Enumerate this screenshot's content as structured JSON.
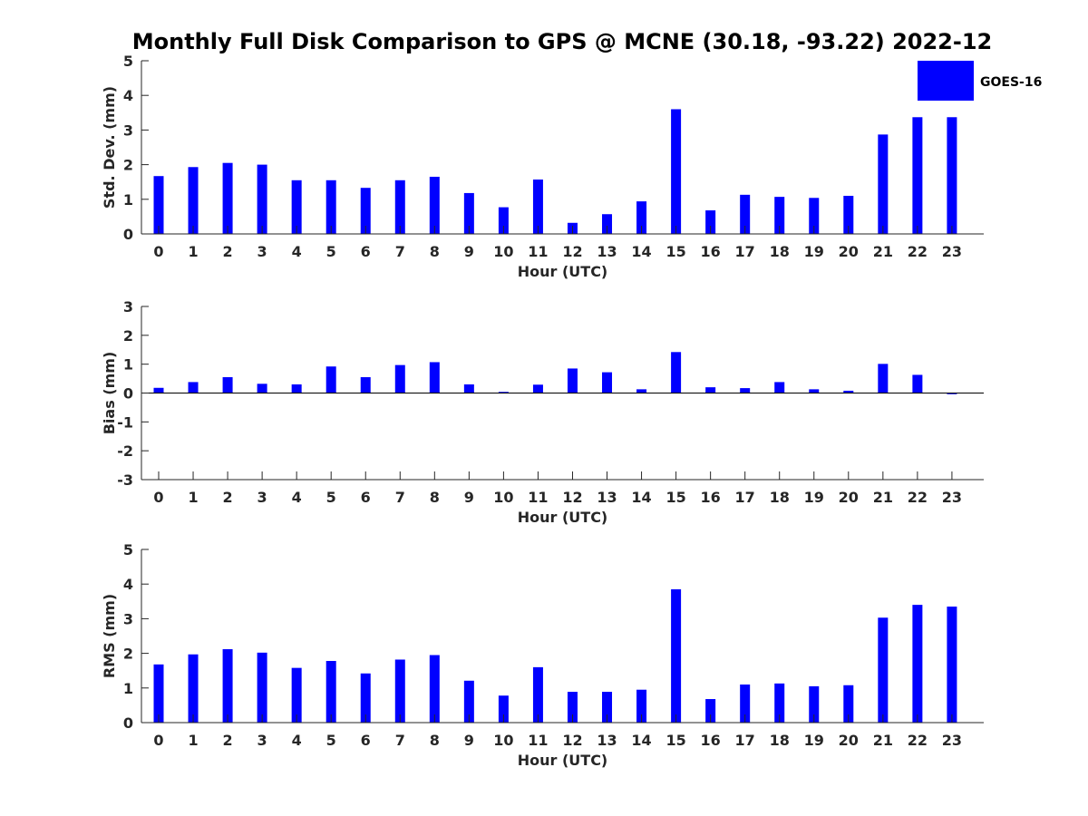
{
  "figure": {
    "title": "Monthly Full Disk Comparison to GPS @ MCNE (30.18, -93.22) 2022-12",
    "bar_color": "#0000ff",
    "axis_color": "#262626"
  },
  "legend": {
    "label": "GOES-16",
    "color": "#0000ff",
    "placement": "top-right"
  },
  "chart_data": [
    {
      "type": "bar",
      "xlabel": "Hour (UTC)",
      "ylabel": "Std. Dev. (mm)",
      "ylim": [
        0,
        5
      ],
      "yticks": [
        0,
        1,
        2,
        3,
        4,
        5
      ],
      "categories": [
        "0",
        "1",
        "2",
        "3",
        "4",
        "5",
        "6",
        "7",
        "8",
        "9",
        "10",
        "11",
        "12",
        "13",
        "14",
        "15",
        "16",
        "17",
        "18",
        "19",
        "20",
        "21",
        "22",
        "23"
      ],
      "series": [
        {
          "name": "GOES-16",
          "values": [
            1.67,
            1.93,
            2.05,
            2.0,
            1.55,
            1.55,
            1.33,
            1.55,
            1.65,
            1.18,
            0.77,
            1.57,
            0.32,
            0.57,
            0.94,
            3.6,
            0.68,
            1.13,
            1.07,
            1.04,
            1.1,
            2.87,
            3.37,
            3.37
          ]
        }
      ]
    },
    {
      "type": "bar",
      "xlabel": "Hour (UTC)",
      "ylabel": "Bias (mm)",
      "ylim": [
        -3,
        3
      ],
      "yticks": [
        -3,
        -2,
        -1,
        0,
        1,
        2,
        3
      ],
      "categories": [
        "0",
        "1",
        "2",
        "3",
        "4",
        "5",
        "6",
        "7",
        "8",
        "9",
        "10",
        "11",
        "12",
        "13",
        "14",
        "15",
        "16",
        "17",
        "18",
        "19",
        "20",
        "21",
        "22",
        "23"
      ],
      "series": [
        {
          "name": "GOES-16",
          "values": [
            0.18,
            0.38,
            0.55,
            0.32,
            0.3,
            0.92,
            0.55,
            0.97,
            1.07,
            0.3,
            0.04,
            0.29,
            0.85,
            0.72,
            0.13,
            1.42,
            0.2,
            0.17,
            0.38,
            0.13,
            0.08,
            1.01,
            0.63,
            -0.04
          ]
        }
      ]
    },
    {
      "type": "bar",
      "xlabel": "Hour (UTC)",
      "ylabel": "RMS (mm)",
      "ylim": [
        0,
        5
      ],
      "yticks": [
        0,
        1,
        2,
        3,
        4,
        5
      ],
      "categories": [
        "0",
        "1",
        "2",
        "3",
        "4",
        "5",
        "6",
        "7",
        "8",
        "9",
        "10",
        "11",
        "12",
        "13",
        "14",
        "15",
        "16",
        "17",
        "18",
        "19",
        "20",
        "21",
        "22",
        "23"
      ],
      "series": [
        {
          "name": "GOES-16",
          "values": [
            1.68,
            1.97,
            2.12,
            2.02,
            1.58,
            1.78,
            1.42,
            1.82,
            1.95,
            1.21,
            0.78,
            1.6,
            0.89,
            0.89,
            0.95,
            3.85,
            0.68,
            1.1,
            1.13,
            1.05,
            1.08,
            3.03,
            3.4,
            3.35
          ]
        }
      ]
    }
  ]
}
